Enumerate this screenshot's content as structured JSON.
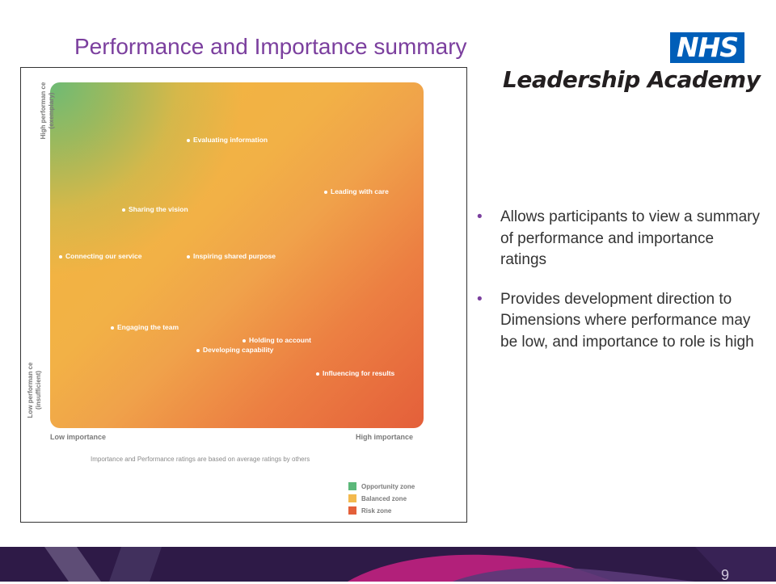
{
  "slide": {
    "title": "Performance and Importance summary",
    "page_number": "9"
  },
  "logo": {
    "nhs": "NHS",
    "academy": "Leadership Academy",
    "nhs_color": "#005eb8"
  },
  "matrix": {
    "y_high_label": "High performan ce (exemplary)",
    "y_low_label": "Low performan ce (insufficient)",
    "x_low_label": "Low importance",
    "x_high_label": "High importance",
    "note": "Importance and Performance ratings are based on average ratings by others",
    "points": [
      {
        "label": "Evaluating information"
      },
      {
        "label": "Leading with care"
      },
      {
        "label": "Sharing the vision"
      },
      {
        "label": "Connecting our service"
      },
      {
        "label": "Inspiring shared purpose"
      },
      {
        "label": "Engaging the team"
      },
      {
        "label": "Holding to account"
      },
      {
        "label": "Developing capability"
      },
      {
        "label": "Influencing for results"
      }
    ],
    "legend": [
      {
        "label": "Opportunity zone",
        "color": "#5cb87a"
      },
      {
        "label": "Balanced zone",
        "color": "#f3b94e"
      },
      {
        "label": "Risk zone",
        "color": "#e4603a"
      }
    ]
  },
  "bullets": [
    "Allows participants to view a summary of performance and importance ratings",
    "Provides development direction to Dimensions where performance may be low, and importance to role is high"
  ],
  "colors": {
    "title": "#7b3f9e",
    "footer": "#2e1a47",
    "footer_accent": "#b2207a"
  }
}
